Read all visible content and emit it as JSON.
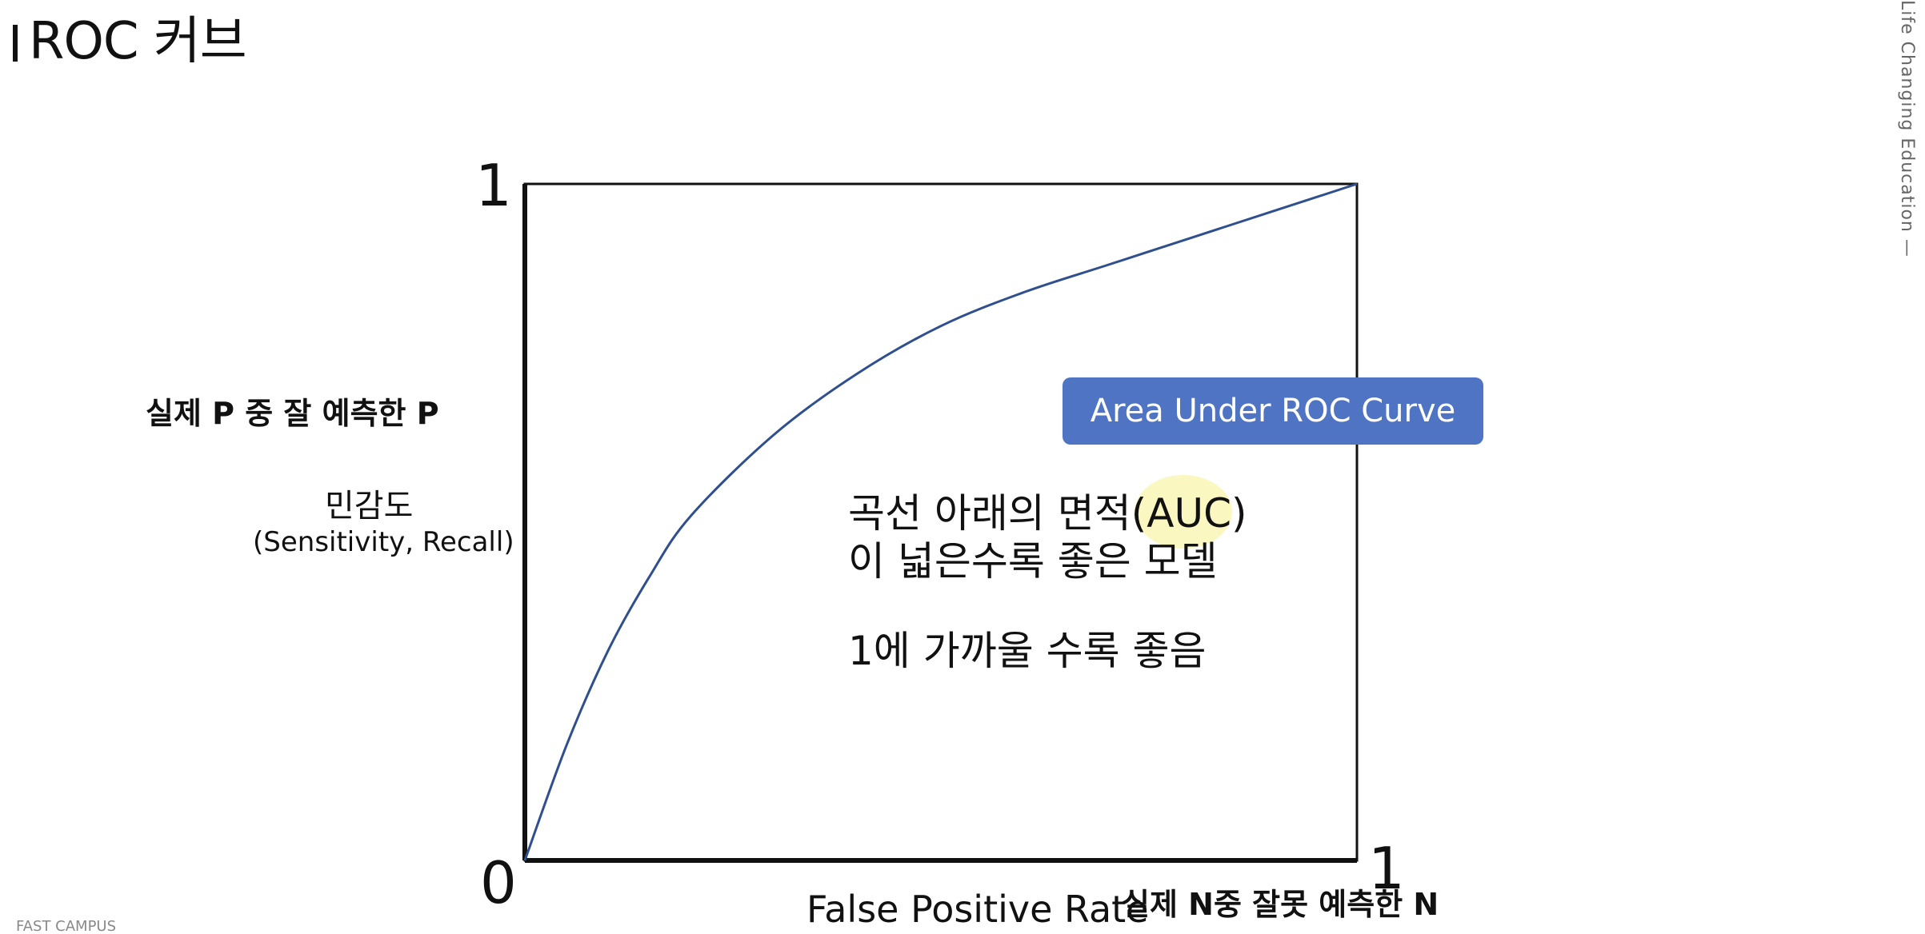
{
  "header": {
    "title": "ROC 커브"
  },
  "branding": {
    "side_text": "Life Changing Education —",
    "footer_text": "FAST CAMPUS"
  },
  "chart_data": {
    "type": "line",
    "title": "",
    "xlabel": "False Positive Rate",
    "ylabel": "민감도",
    "xlim": [
      0,
      1
    ],
    "ylim": [
      0,
      1
    ],
    "grid": false,
    "x": [
      0.0,
      0.05,
      0.1,
      0.15,
      0.2,
      0.3,
      0.4,
      0.5,
      0.6,
      0.7,
      0.8,
      0.9,
      1.0
    ],
    "y": [
      0.0,
      0.17,
      0.31,
      0.42,
      0.51,
      0.63,
      0.72,
      0.79,
      0.84,
      0.88,
      0.92,
      0.96,
      1.0
    ],
    "line_color": "#2f4f8f",
    "ticks": {
      "y_top": "1",
      "y_bottom": "0",
      "x_right": "1"
    }
  },
  "labels": {
    "y_desc": "실제 P 중 잘 예측한 P",
    "y_label_line2": "(Sensitivity, Recall)",
    "x_desc": "실제 N중 잘못 예측한 N",
    "auc_badge": "Area Under ROC Curve",
    "desc_line1": "곡선 아래의 면적(AUC)",
    "desc_line2": "이 넓은수록 좋은 모델",
    "desc_line3": "1에 가까울 수록 좋음"
  },
  "colors": {
    "badge": "#4f74c4",
    "curve": "#2f4f8f",
    "highlight": "#f5f08c"
  }
}
